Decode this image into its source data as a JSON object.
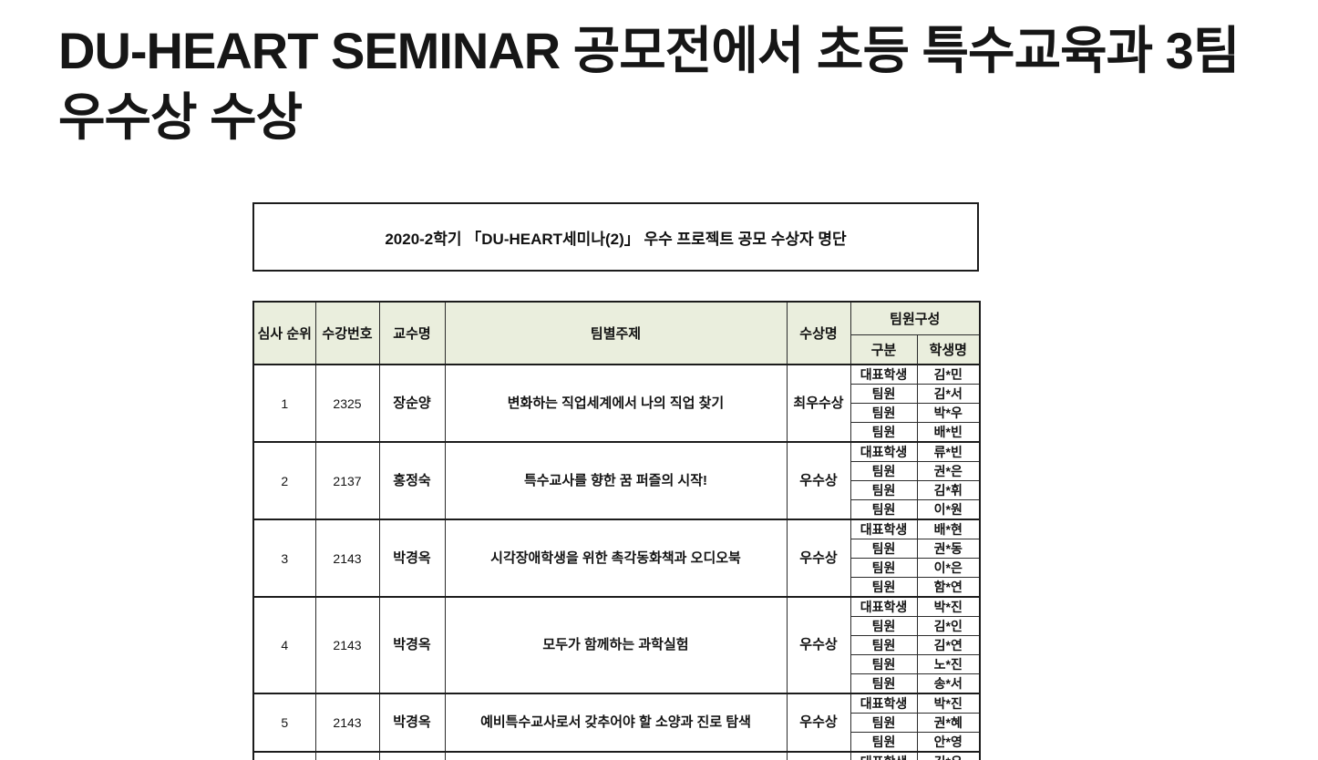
{
  "page_title": {
    "line1": "DU-HEART SEMINAR 공모전에서 초등 특수교육과 3팀",
    "line2": "우수상 수상"
  },
  "doc_title": "2020-2학기 「DU-HEART세미나(2)」 우수 프로젝트 공모 수상자 명단",
  "table": {
    "headers": {
      "rank": "심사 순위",
      "course_no": "수강번호",
      "professor": "교수명",
      "topic": "팀별주제",
      "award": "수상명",
      "team": "팀원구성",
      "role": "구분",
      "student": "학생명"
    },
    "rows": [
      {
        "rank": "1",
        "course_no": "2325",
        "professor": "장순양",
        "topic": "변화하는 직업세계에서 나의 직업 찾기",
        "award": "최우수상",
        "members": [
          {
            "role": "대표학생",
            "name": "김*민"
          },
          {
            "role": "팀원",
            "name": "김*서"
          },
          {
            "role": "팀원",
            "name": "박*우"
          },
          {
            "role": "팀원",
            "name": "배*빈"
          }
        ]
      },
      {
        "rank": "2",
        "course_no": "2137",
        "professor": "홍정숙",
        "topic": "특수교사를 향한 꿈 퍼즐의 시작!",
        "award": "우수상",
        "members": [
          {
            "role": "대표학생",
            "name": "류*빈"
          },
          {
            "role": "팀원",
            "name": "권*은"
          },
          {
            "role": "팀원",
            "name": "김*휘"
          },
          {
            "role": "팀원",
            "name": "이*원"
          }
        ]
      },
      {
        "rank": "3",
        "course_no": "2143",
        "professor": "박경옥",
        "topic": "시각장애학생을 위한 촉각동화책과 오디오북",
        "award": "우수상",
        "members": [
          {
            "role": "대표학생",
            "name": "배*현"
          },
          {
            "role": "팀원",
            "name": "권*동"
          },
          {
            "role": "팀원",
            "name": "이*은"
          },
          {
            "role": "팀원",
            "name": "함*연"
          }
        ]
      },
      {
        "rank": "4",
        "course_no": "2143",
        "professor": "박경옥",
        "topic": "모두가 함께하는 과학실험",
        "award": "우수상",
        "members": [
          {
            "role": "대표학생",
            "name": "박*진"
          },
          {
            "role": "팀원",
            "name": "김*인"
          },
          {
            "role": "팀원",
            "name": "김*연"
          },
          {
            "role": "팀원",
            "name": "노*진"
          },
          {
            "role": "팀원",
            "name": "송*서"
          }
        ]
      },
      {
        "rank": "5",
        "course_no": "2143",
        "professor": "박경옥",
        "topic": "예비특수교사로서 갖추어야 할 소양과 진로 탐색",
        "award": "우수상",
        "members": [
          {
            "role": "대표학생",
            "name": "박*진"
          },
          {
            "role": "팀원",
            "name": "권*혜"
          },
          {
            "role": "팀원",
            "name": "안*영"
          }
        ]
      },
      {
        "rank": "",
        "course_no": "",
        "professor": "",
        "topic": "",
        "award": "",
        "members": [
          {
            "role": "대표학생",
            "name": "김*우"
          }
        ]
      }
    ]
  },
  "colors": {
    "header_bg": "#eaeedd",
    "border": "#1c1c1c",
    "text": "#141414"
  }
}
